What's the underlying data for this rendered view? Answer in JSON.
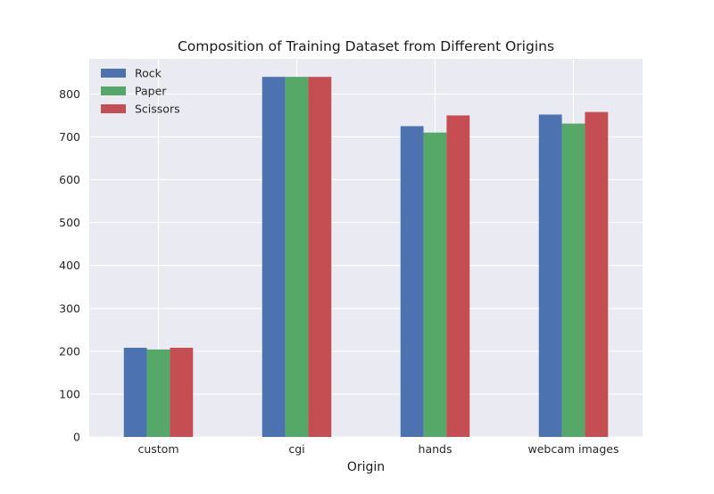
{
  "chart_data": {
    "type": "bar",
    "title": "Composition of Training Dataset from Different Origins",
    "xlabel": "Origin",
    "ylabel": "",
    "categories": [
      "custom",
      "cgi",
      "hands",
      "webcam images"
    ],
    "series": [
      {
        "name": "Rock",
        "color": "#4c72b0",
        "values": [
          208,
          840,
          725,
          752
        ]
      },
      {
        "name": "Paper",
        "color": "#55a868",
        "values": [
          204,
          840,
          710,
          731
        ]
      },
      {
        "name": "Scissors",
        "color": "#c44e52",
        "values": [
          208,
          840,
          750,
          758
        ]
      }
    ],
    "ylim": [
      0,
      882
    ],
    "yticks": [
      "0",
      "100",
      "200",
      "300",
      "400",
      "500",
      "600",
      "700",
      "800"
    ],
    "grid": true,
    "legend_position": "top-left",
    "plot_background": "#eaeaf2",
    "grid_color": "#ffffff"
  }
}
